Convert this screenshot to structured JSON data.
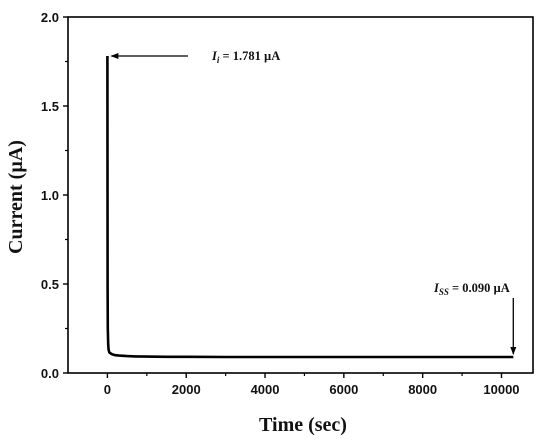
{
  "chart_data": {
    "type": "line",
    "xlabel": "Time (sec)",
    "ylabel": "Current (µA)",
    "xlim": [
      -1000,
      10800
    ],
    "ylim": [
      0,
      2.0
    ],
    "x_ticks": [
      {
        "value": 0,
        "label": "0"
      },
      {
        "value": 2000,
        "label": "2000"
      },
      {
        "value": 4000,
        "label": "4000"
      },
      {
        "value": 6000,
        "label": "6000"
      },
      {
        "value": 8000,
        "label": "8000"
      },
      {
        "value": 10000,
        "label": "10000"
      }
    ],
    "y_ticks": [
      {
        "value": 0.0,
        "label": "0.0"
      },
      {
        "value": 0.5,
        "label": "0.5"
      },
      {
        "value": 1.0,
        "label": "1.0"
      },
      {
        "value": 1.5,
        "label": "1.5"
      },
      {
        "value": 2.0,
        "label": "2.0"
      }
    ],
    "grid": false,
    "series": [
      {
        "color": "#000000",
        "x": [
          0,
          5,
          10,
          20,
          30,
          50,
          80,
          120,
          200,
          300,
          500,
          700,
          1000,
          1500,
          2000,
          3000,
          4000,
          5000,
          6000,
          7000,
          8000,
          9000,
          10000,
          10300
        ],
        "y": [
          1.781,
          0.5,
          0.25,
          0.16,
          0.13,
          0.115,
          0.11,
          0.105,
          0.1,
          0.098,
          0.095,
          0.093,
          0.092,
          0.091,
          0.091,
          0.09,
          0.09,
          0.09,
          0.09,
          0.09,
          0.09,
          0.09,
          0.09,
          0.09
        ]
      }
    ],
    "annotations": [
      {
        "var": "I",
        "sub": "i",
        "text": " = 1.781 µA",
        "x": 0,
        "y": 1.781
      },
      {
        "var": "I",
        "sub": "SS",
        "text": " = 0.090 µA",
        "x": 10300,
        "y": 0.09
      }
    ]
  }
}
